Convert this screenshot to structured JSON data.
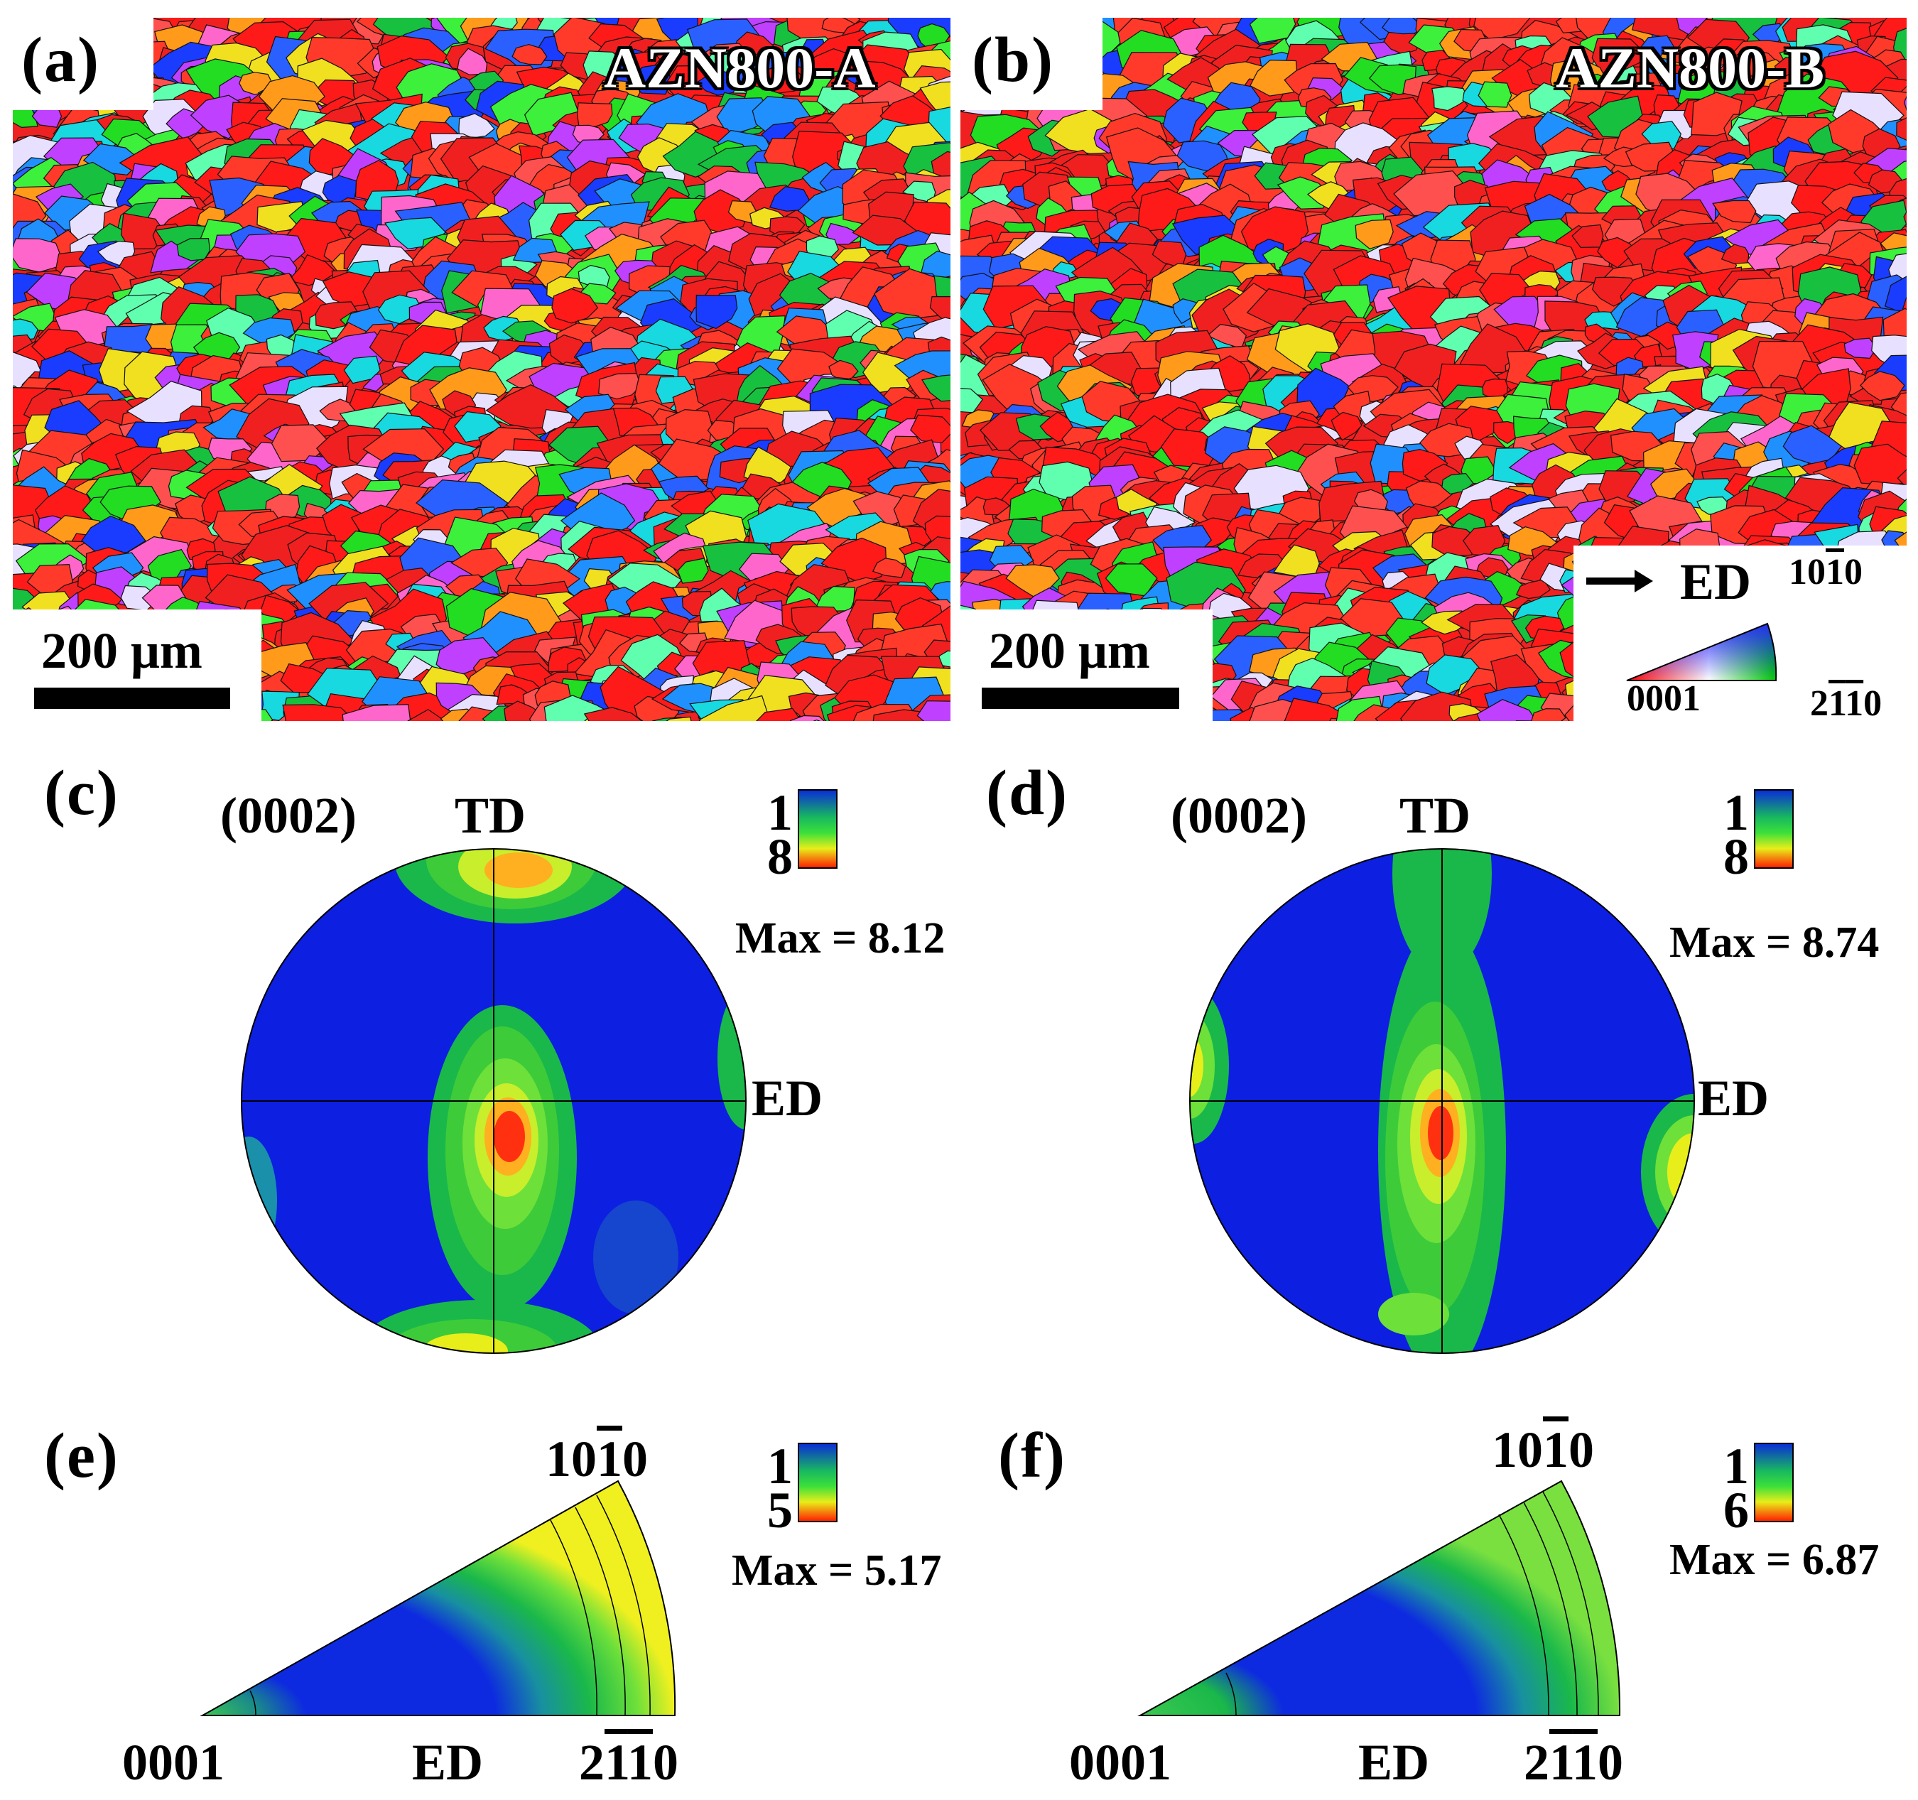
{
  "panels": {
    "a": {
      "letter": "(a)",
      "sample": "AZN800-A",
      "scale": "200 μm"
    },
    "b": {
      "letter": "(b)",
      "sample": "AZN800-B",
      "scale": "200 μm"
    },
    "c": {
      "letter": "(c)",
      "plane": "(0002)",
      "top_axis": "TD",
      "right_axis": "ED",
      "legend_min": "1",
      "legend_max": "8",
      "max_text": "Max = 8.12"
    },
    "d": {
      "letter": "(d)",
      "plane": "(0002)",
      "top_axis": "TD",
      "right_axis": "ED",
      "legend_min": "1",
      "legend_max": "8",
      "max_text": "Max = 8.74"
    },
    "e": {
      "letter": "(e)",
      "legend_min": "1",
      "legend_max": "5",
      "max_text": "Max = 5.17",
      "corner_left": "0001",
      "corner_mid": "ED",
      "corner_top": "1010",
      "corner_right": "2110"
    },
    "f": {
      "letter": "(f)",
      "legend_min": "1",
      "legend_max": "6",
      "max_text": "Max = 6.87",
      "corner_left": "0001",
      "corner_mid": "ED",
      "corner_top": "1010",
      "corner_right": "2110"
    }
  },
  "ipf_key": {
    "direction": "ED",
    "top": "1010",
    "left": "0001",
    "right": "2110"
  },
  "colors": {
    "red": "#ff0000",
    "green": "#22dd22",
    "blue": "#0a2bd8",
    "map_blue": "#0d1fe0",
    "contour_green": "#36c83c",
    "yellow": "#f4f01a"
  }
}
